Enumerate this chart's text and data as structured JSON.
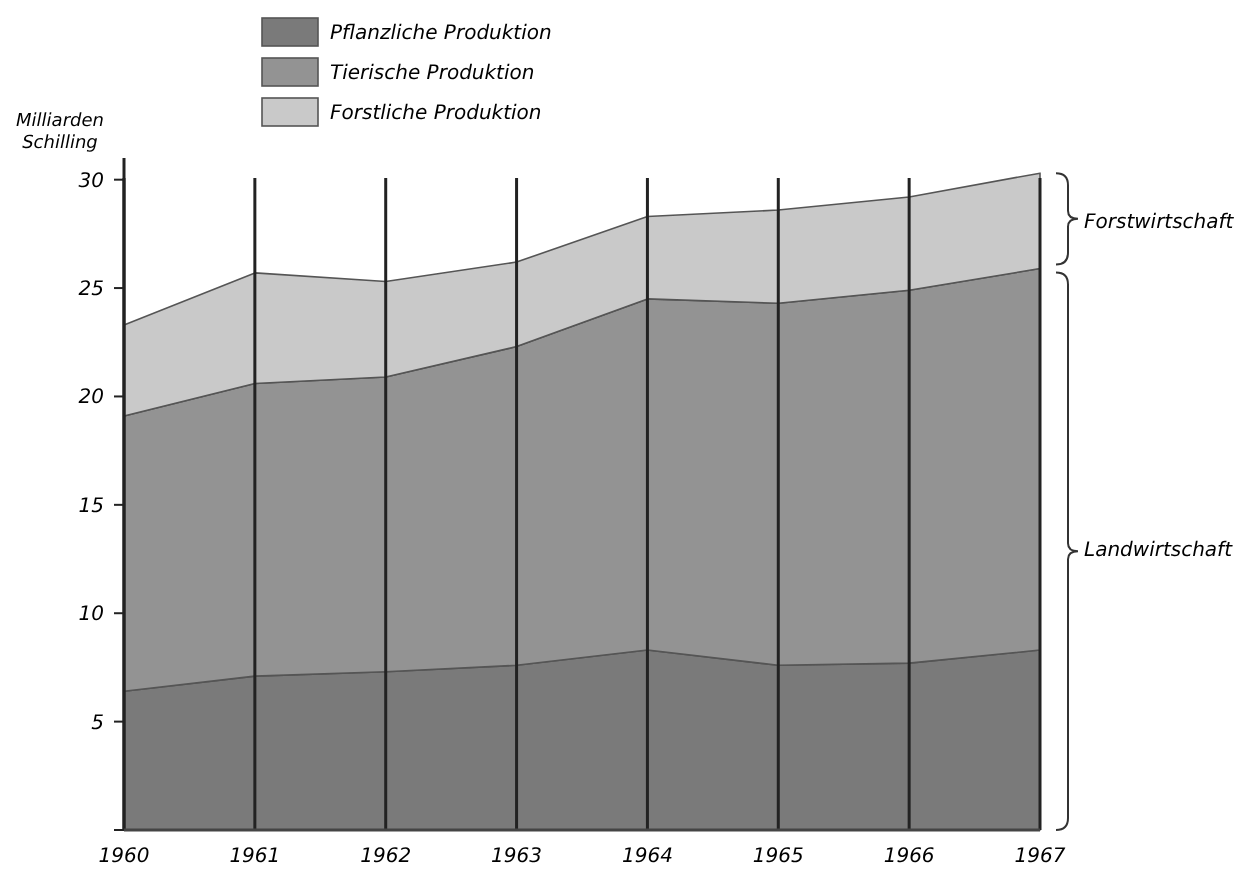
{
  "chart_data": {
    "type": "area",
    "stacked": true,
    "ylabel": "Milliarden Schilling",
    "categories": [
      "1960",
      "1961",
      "1962",
      "1963",
      "1964",
      "1965",
      "1966",
      "1967"
    ],
    "series": [
      {
        "name": "Pflanzliche Produktion",
        "color": "#7a7a7a",
        "values": [
          6.4,
          7.1,
          7.3,
          7.6,
          8.3,
          7.6,
          7.7,
          8.3
        ]
      },
      {
        "name": "Tierische Produktion",
        "color": "#939393",
        "values": [
          12.7,
          13.5,
          13.6,
          14.7,
          16.2,
          16.7,
          17.2,
          17.6
        ]
      },
      {
        "name": "Forstliche Produktion",
        "color": "#c9c9c9",
        "values": [
          4.2,
          5.1,
          4.4,
          3.9,
          3.8,
          4.3,
          4.3,
          4.4
        ]
      }
    ],
    "ylim": [
      0,
      31
    ],
    "yticks": [
      {
        "value": 0,
        "label": null
      },
      5,
      10,
      15,
      20,
      25,
      30
    ],
    "grid": "x",
    "legend": "top left",
    "annotations": [
      "Forstwirtschaft",
      "Landwirtschaft"
    ]
  }
}
